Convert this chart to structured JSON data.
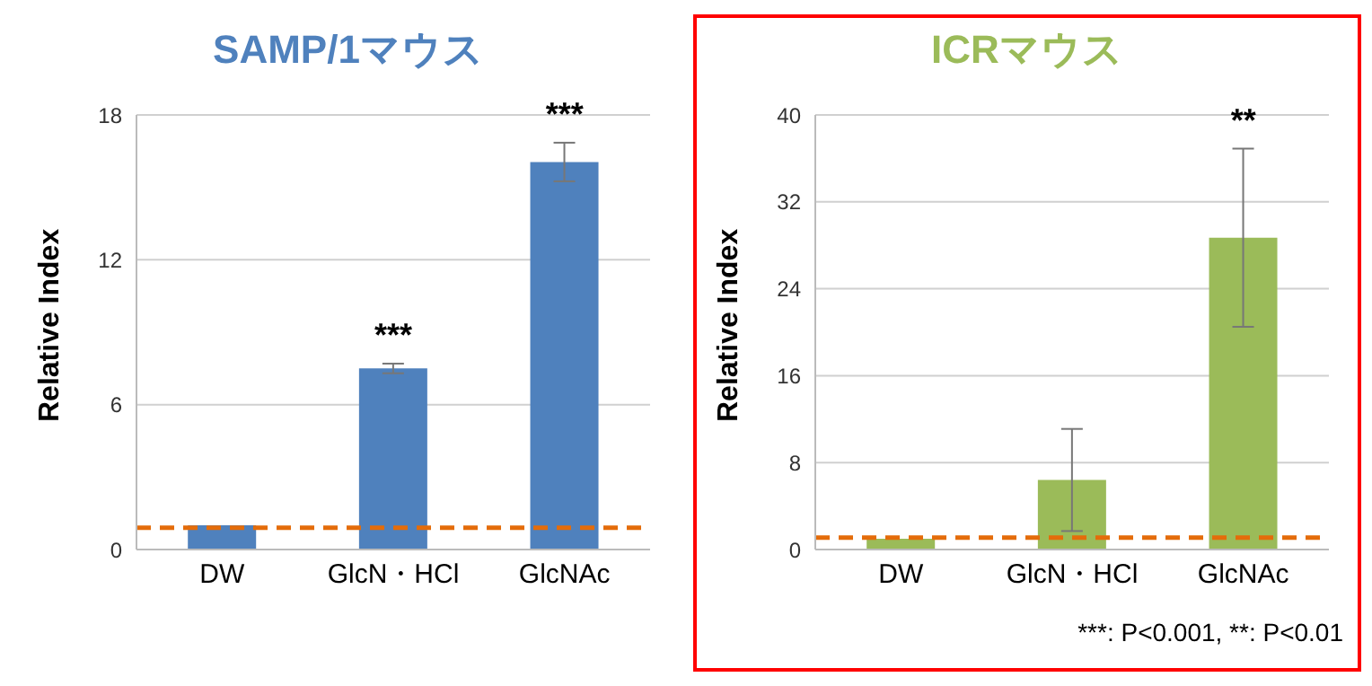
{
  "chart_data": [
    {
      "type": "bar",
      "title": "SAMP/1マウス",
      "ylabel": "Relative Index",
      "categories": [
        "DW",
        "GlcN・HCl",
        "GlcNAc"
      ],
      "values": [
        1.0,
        7.5,
        16.05
      ],
      "errors": [
        null,
        0.2,
        0.8
      ],
      "color": "#4f81bd",
      "ylim": [
        0,
        18
      ],
      "yticks": [
        0,
        6,
        12,
        18
      ],
      "grid": "y",
      "ref_lines": [
        {
          "axis": "y",
          "value": 0.9,
          "color": "#e46c0a",
          "line_style": "dashed"
        }
      ],
      "annotations": [
        {
          "text": "***",
          "x": "GlcN・HCl",
          "y": 7.7
        },
        {
          "text": "***",
          "x": "GlcNAc",
          "y": 16.85
        }
      ]
    },
    {
      "type": "bar",
      "title": "ICRマウス",
      "ylabel": "Relative Index",
      "categories": [
        "DW",
        "GlcN・HCl",
        "GlcNAc"
      ],
      "values": [
        1.0,
        6.4,
        28.7
      ],
      "errors": [
        null,
        4.7,
        8.2
      ],
      "color": "#9bbb59",
      "ylim": [
        0,
        40
      ],
      "yticks": [
        0,
        8,
        16,
        24,
        32,
        40
      ],
      "grid": "y",
      "ref_lines": [
        {
          "axis": "y",
          "value": 1.1,
          "color": "#e46c0a",
          "line_style": "dashed"
        }
      ],
      "annotations": [
        {
          "text": "**",
          "x": "GlcNAc",
          "y": 36.9
        },
        "***: P<0.001, **: P<0.01"
      ]
    }
  ]
}
